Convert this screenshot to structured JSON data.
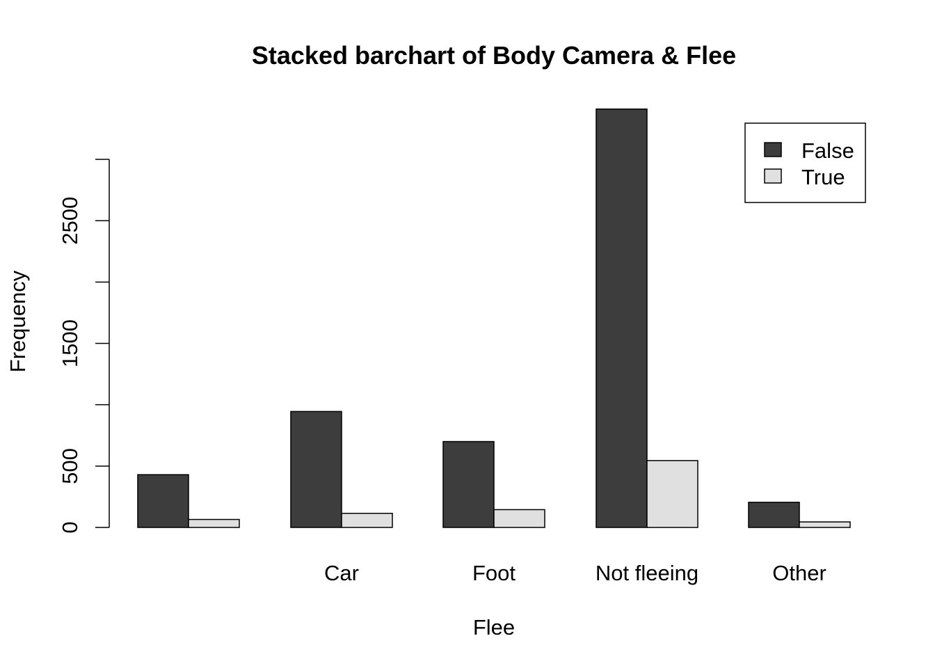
{
  "chart_data": {
    "type": "bar",
    "title": "Stacked barchart of Body Camera & Flee",
    "xlabel": "Flee",
    "ylabel": "Frequency",
    "categories": [
      "",
      "Car",
      "Foot",
      "Not fleeing",
      "Other"
    ],
    "series": [
      {
        "name": "False",
        "color": "#3d3d3d",
        "values": [
          430,
          945,
          700,
          3410,
          205
        ]
      },
      {
        "name": "True",
        "color": "#e0e0e0",
        "values": [
          65,
          115,
          145,
          545,
          45
        ]
      }
    ],
    "yticks": [
      0,
      500,
      1000,
      1500,
      2000,
      2500,
      3000
    ],
    "ytick_labels": [
      "0",
      "500",
      "",
      "1500",
      "",
      "2500",
      ""
    ],
    "ylim": [
      0,
      3410
    ],
    "grid": false,
    "legend_position": "top-right",
    "bar_mode": "grouped"
  }
}
